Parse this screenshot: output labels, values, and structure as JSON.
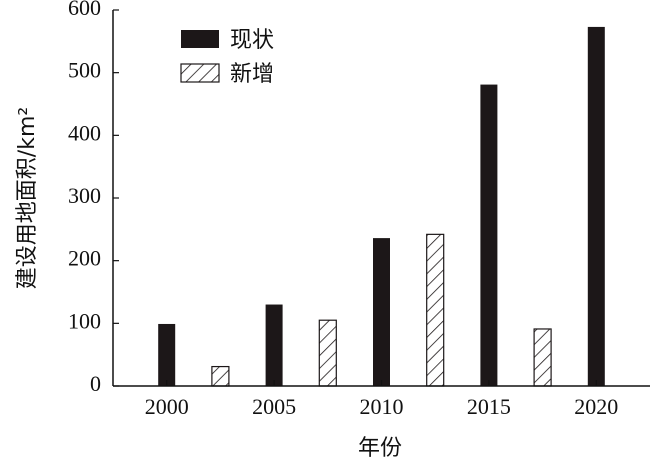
{
  "chart_data": {
    "type": "bar",
    "categories": [
      "2000",
      "2005",
      "2010",
      "2015",
      "2020"
    ],
    "series": [
      {
        "name": "现状",
        "x": [
          2000,
          2005,
          2010,
          2015,
          2020
        ],
        "values": [
          99,
          130,
          236,
          481,
          573
        ],
        "style": "solid",
        "color": "#1c1718"
      },
      {
        "name": "新增",
        "x": [
          2002.5,
          2007.5,
          2012.5,
          2017.5
        ],
        "values": [
          31,
          105,
          242,
          91
        ],
        "style": "hatched",
        "color": "#1c1718"
      }
    ],
    "xlabel": "年份",
    "ylabel": "建设用地面积/km²",
    "ylim": [
      0,
      600
    ],
    "yticks": [
      0,
      100,
      200,
      300,
      400,
      500,
      600
    ],
    "xlim": [
      1997.5,
      2022.5
    ],
    "grid": false,
    "legend_placement": "top-left"
  }
}
